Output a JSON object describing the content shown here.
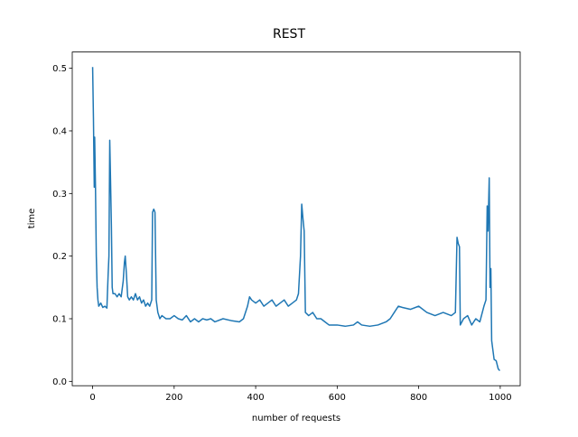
{
  "chart_data": {
    "type": "line",
    "title": "REST",
    "xlabel": "number of requests",
    "ylabel": "time",
    "x": [
      0,
      2,
      4,
      5,
      7,
      9,
      11,
      13,
      15,
      20,
      25,
      30,
      35,
      38,
      40,
      42,
      44,
      46,
      48,
      50,
      55,
      60,
      65,
      70,
      75,
      78,
      80,
      83,
      86,
      90,
      95,
      100,
      105,
      110,
      115,
      120,
      125,
      130,
      135,
      140,
      145,
      147,
      150,
      153,
      156,
      160,
      165,
      170,
      180,
      190,
      200,
      210,
      220,
      230,
      240,
      250,
      260,
      270,
      280,
      290,
      300,
      320,
      340,
      360,
      370,
      380,
      385,
      390,
      400,
      410,
      420,
      430,
      440,
      450,
      460,
      470,
      480,
      490,
      500,
      505,
      510,
      513,
      516,
      519,
      522,
      530,
      540,
      550,
      560,
      570,
      580,
      600,
      620,
      640,
      650,
      660,
      680,
      700,
      720,
      730,
      740,
      750,
      760,
      780,
      800,
      820,
      840,
      860,
      880,
      890,
      894,
      897,
      900,
      902,
      910,
      920,
      930,
      940,
      950,
      960,
      965,
      968,
      970,
      973,
      975,
      977,
      979,
      982,
      985,
      990,
      995,
      999
    ],
    "series": [
      {
        "name": "REST",
        "color": "#1f77b4",
        "values": [
          0.502,
          0.42,
          0.31,
          0.39,
          0.31,
          0.2,
          0.15,
          0.13,
          0.12,
          0.125,
          0.118,
          0.12,
          0.117,
          0.17,
          0.2,
          0.385,
          0.32,
          0.25,
          0.15,
          0.14,
          0.14,
          0.135,
          0.14,
          0.135,
          0.16,
          0.19,
          0.2,
          0.17,
          0.135,
          0.13,
          0.135,
          0.13,
          0.14,
          0.13,
          0.135,
          0.125,
          0.13,
          0.12,
          0.125,
          0.12,
          0.13,
          0.27,
          0.275,
          0.27,
          0.13,
          0.11,
          0.1,
          0.105,
          0.1,
          0.1,
          0.105,
          0.1,
          0.098,
          0.105,
          0.095,
          0.1,
          0.095,
          0.1,
          0.098,
          0.1,
          0.095,
          0.1,
          0.097,
          0.095,
          0.1,
          0.12,
          0.135,
          0.13,
          0.125,
          0.13,
          0.12,
          0.125,
          0.13,
          0.12,
          0.125,
          0.13,
          0.12,
          0.125,
          0.13,
          0.14,
          0.2,
          0.283,
          0.26,
          0.24,
          0.11,
          0.105,
          0.11,
          0.1,
          0.1,
          0.095,
          0.09,
          0.09,
          0.088,
          0.09,
          0.095,
          0.09,
          0.088,
          0.09,
          0.095,
          0.1,
          0.11,
          0.12,
          0.118,
          0.115,
          0.12,
          0.11,
          0.105,
          0.11,
          0.105,
          0.11,
          0.23,
          0.22,
          0.215,
          0.09,
          0.1,
          0.105,
          0.09,
          0.1,
          0.095,
          0.12,
          0.13,
          0.28,
          0.24,
          0.325,
          0.15,
          0.18,
          0.065,
          0.05,
          0.035,
          0.033,
          0.02,
          0.017
        ]
      }
    ],
    "xlim": [
      -50,
      1049
    ],
    "ylim": [
      -0.007,
      0.526
    ],
    "xticks": [
      0,
      200,
      400,
      600,
      800,
      1000
    ],
    "yticks": [
      {
        "value": 0,
        "label": "0.0"
      },
      0.1,
      0.2,
      0.3,
      0.4,
      0.5
    ]
  }
}
